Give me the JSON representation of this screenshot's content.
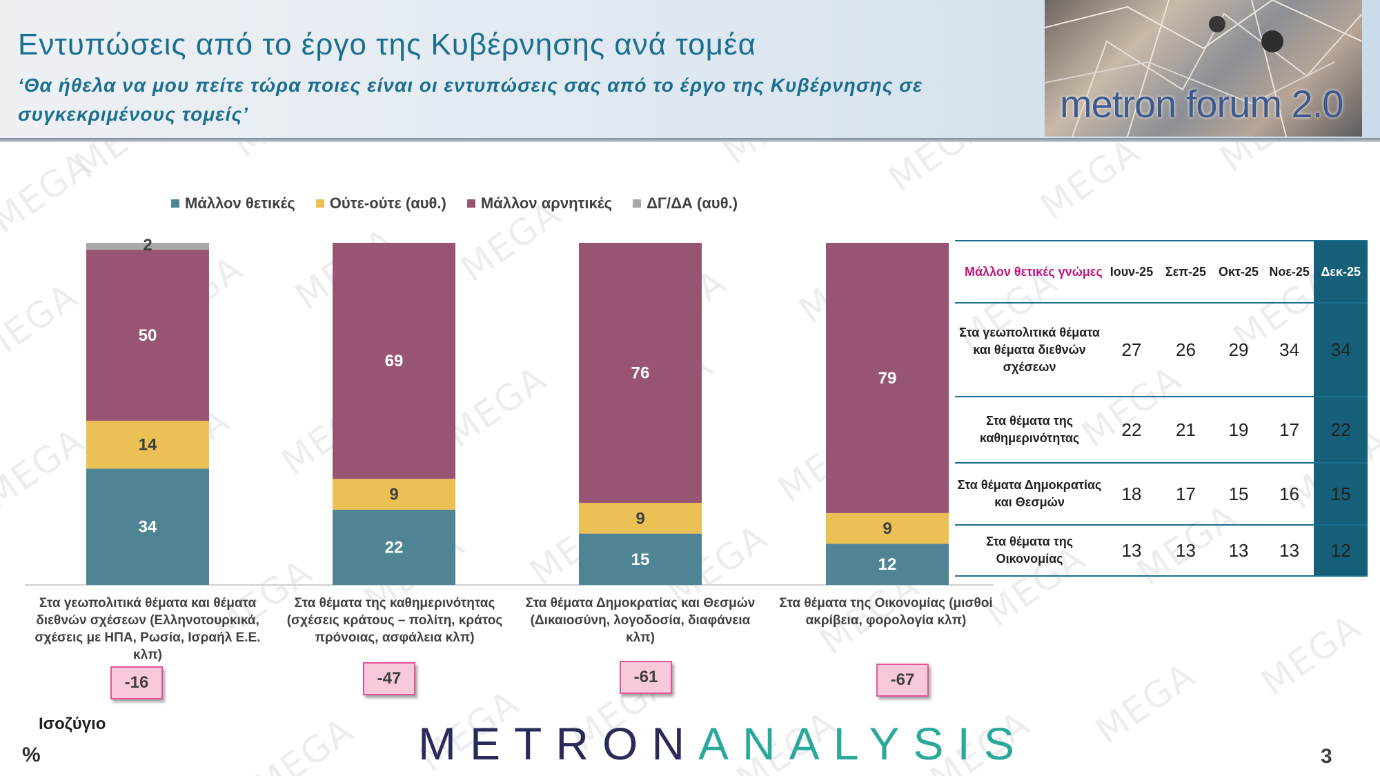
{
  "header": {
    "title": "Εντυπώσεις από το έργο της Κυβέρνησης ανά τομέα",
    "subtitle": "‘Θα ήθελα να μου πείτε τώρα ποιες είναι οι εντυπώσεις σας από το έργο της Κυβέρνησης σε συγκεκριμένους τομείς’",
    "logo_text": "metron forum 2.0"
  },
  "watermark_text": "MEGA",
  "colors": {
    "positive": "#4f8494",
    "neutral": "#ebc054",
    "negative": "#975573",
    "dk": "#a8a8a8",
    "accent": "#1b6f8e",
    "table_highlight": "#155f78"
  },
  "chart_data": {
    "type": "bar",
    "stacked": true,
    "legend_position": "top",
    "categories": [
      "Στα γεωπολιτικά θέματα και θέματα διεθνών σχέσεων (Ελληνοτουρκικά, σχέσεις με ΗΠΑ, Ρωσία, Ισραήλ Ε.Ε. κλπ)",
      "Στα θέματα της καθημερινότητας (σχέσεις κράτους – πολίτη, κράτος πρόνοιας, ασφάλεια κλπ)",
      "Στα θέματα Δημοκρατίας και Θεσμών (Δικαιοσύνη, λογοδοσία, διαφάνεια κλπ)",
      "Στα θέματα της Οικονομίας (μισθοί ακρίβεια, φορολογία κλπ)"
    ],
    "series": [
      {
        "name": "Μάλλον θετικές",
        "values": [
          34,
          22,
          15,
          12
        ]
      },
      {
        "name": "Ούτε-ούτε  (αυθ.)",
        "values": [
          14,
          9,
          9,
          9
        ]
      },
      {
        "name": "Μάλλον αρνητικές",
        "values": [
          50,
          69,
          76,
          79
        ]
      },
      {
        "name": "ΔΓ/ΔΑ (αυθ.)",
        "values": [
          2,
          0,
          0,
          0
        ]
      }
    ],
    "ylim": [
      0,
      100
    ],
    "grid": false
  },
  "balance": {
    "title": "Ισοζύγιο",
    "values": [
      "-16",
      "-47",
      "-61",
      "-67"
    ]
  },
  "trend_table": {
    "corner": "Μάλλον θετικές γνώμες",
    "columns": [
      "Ιουν-25",
      "Σεπ-25",
      "Οκτ-25",
      "Νοε-25",
      "Δεκ-25"
    ],
    "rows": [
      {
        "label": "Στα γεωπολιτικά θέματα και θέματα διεθνών σχέσεων",
        "values": [
          "27",
          "26",
          "29",
          "34",
          "34"
        ]
      },
      {
        "label": "Στα θέματα της καθημερινότητας",
        "values": [
          "22",
          "21",
          "19",
          "17",
          "22"
        ]
      },
      {
        "label": "Στα θέματα Δημοκρατίας και Θεσμών",
        "values": [
          "18",
          "17",
          "15",
          "16",
          "15"
        ]
      },
      {
        "label": "Στα θέματα της Οικονομίας",
        "values": [
          "13",
          "13",
          "13",
          "13",
          "12"
        ]
      }
    ]
  },
  "footer": {
    "percent_sign": "%",
    "page_number": "3",
    "brand_part1": "METRON",
    "brand_part2": "ANALYSIS"
  }
}
